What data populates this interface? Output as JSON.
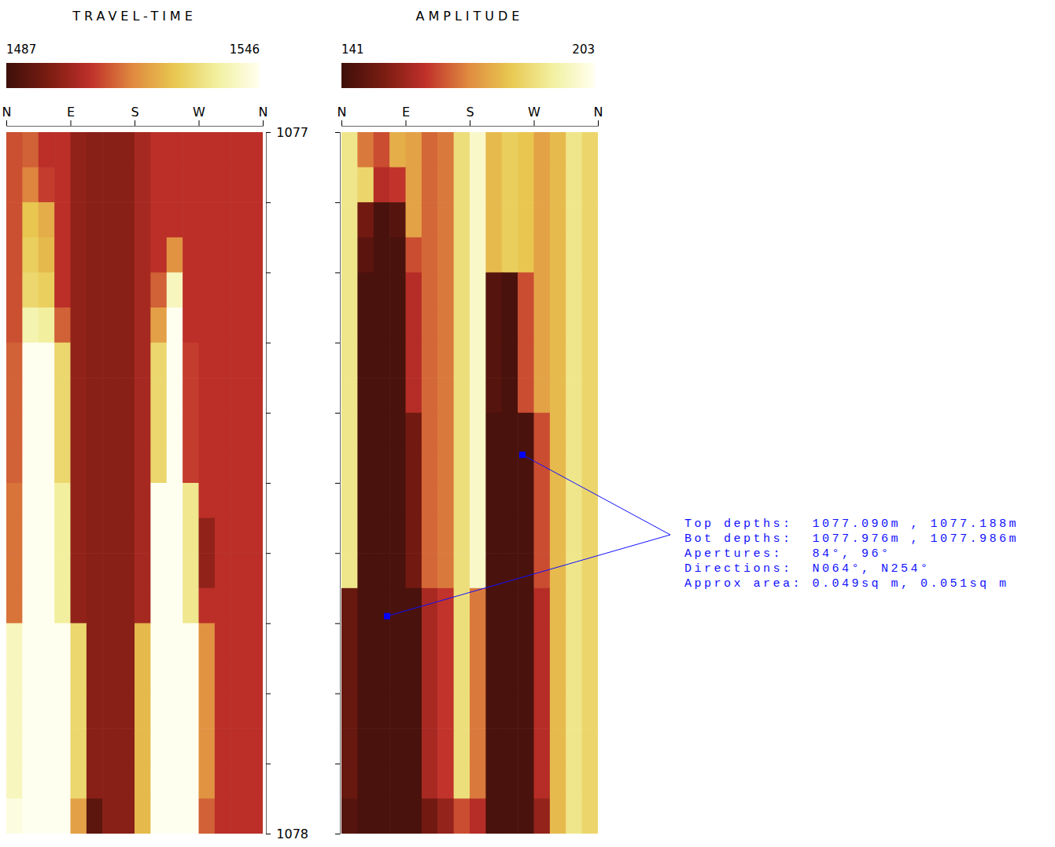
{
  "chart_data": [
    {
      "type": "heatmap",
      "title": "TRAVEL-TIME",
      "xlim": [
        0,
        360
      ],
      "xticks": [
        {
          "value": 0,
          "label": "N"
        },
        {
          "value": 90,
          "label": "E"
        },
        {
          "value": 180,
          "label": "S"
        },
        {
          "value": 270,
          "label": "W"
        },
        {
          "value": 360,
          "label": "N"
        }
      ],
      "ylim": [
        1077,
        1078
      ],
      "colorbar": {
        "range": [
          1487,
          1546
        ],
        "ticks": [
          1487,
          1546
        ]
      },
      "cells": [
        [
          1510,
          1512,
          1506,
          1506,
          1500,
          1499,
          1499,
          1499,
          1503,
          1506,
          1506,
          1506,
          1506,
          1506,
          1506,
          1506
        ],
        [
          1510,
          1516,
          1508,
          1506,
          1500,
          1499,
          1499,
          1499,
          1503,
          1506,
          1506,
          1506,
          1506,
          1506,
          1506,
          1506
        ],
        [
          1510,
          1526,
          1522,
          1506,
          1500,
          1499,
          1499,
          1499,
          1503,
          1506,
          1506,
          1506,
          1506,
          1506,
          1506,
          1506
        ],
        [
          1510,
          1528,
          1524,
          1506,
          1500,
          1499,
          1499,
          1499,
          1503,
          1506,
          1518,
          1506,
          1506,
          1506,
          1506,
          1506
        ],
        [
          1510,
          1530,
          1528,
          1506,
          1500,
          1499,
          1499,
          1499,
          1503,
          1512,
          1540,
          1506,
          1506,
          1506,
          1506,
          1506
        ],
        [
          1510,
          1538,
          1536,
          1512,
          1500,
          1499,
          1499,
          1499,
          1503,
          1520,
          1546,
          1506,
          1506,
          1506,
          1506,
          1506
        ],
        [
          1512,
          1546,
          1546,
          1530,
          1500,
          1499,
          1499,
          1499,
          1503,
          1530,
          1546,
          1508,
          1506,
          1506,
          1506,
          1506
        ],
        [
          1512,
          1546,
          1546,
          1530,
          1500,
          1499,
          1499,
          1499,
          1503,
          1530,
          1546,
          1508,
          1506,
          1506,
          1506,
          1506
        ],
        [
          1512,
          1546,
          1546,
          1530,
          1500,
          1499,
          1499,
          1499,
          1503,
          1530,
          1546,
          1508,
          1506,
          1506,
          1506,
          1506
        ],
        [
          1512,
          1546,
          1546,
          1530,
          1500,
          1499,
          1499,
          1499,
          1503,
          1530,
          1546,
          1508,
          1506,
          1506,
          1506,
          1506
        ],
        [
          1514,
          1546,
          1546,
          1536,
          1500,
          1499,
          1499,
          1499,
          1503,
          1546,
          1546,
          1534,
          1506,
          1506,
          1506,
          1506
        ],
        [
          1514,
          1546,
          1546,
          1536,
          1500,
          1499,
          1499,
          1499,
          1503,
          1546,
          1546,
          1534,
          1500,
          1506,
          1506,
          1506
        ],
        [
          1514,
          1546,
          1546,
          1536,
          1500,
          1499,
          1499,
          1499,
          1503,
          1546,
          1546,
          1534,
          1500,
          1506,
          1506,
          1506
        ],
        [
          1514,
          1546,
          1546,
          1536,
          1500,
          1499,
          1499,
          1499,
          1503,
          1546,
          1546,
          1534,
          1506,
          1506,
          1506,
          1506
        ],
        [
          1540,
          1546,
          1546,
          1546,
          1530,
          1499,
          1499,
          1499,
          1524,
          1546,
          1546,
          1546,
          1518,
          1506,
          1506,
          1506
        ],
        [
          1540,
          1546,
          1546,
          1546,
          1530,
          1499,
          1499,
          1499,
          1524,
          1546,
          1546,
          1546,
          1518,
          1506,
          1506,
          1506
        ],
        [
          1540,
          1546,
          1546,
          1546,
          1530,
          1499,
          1499,
          1499,
          1524,
          1546,
          1546,
          1546,
          1518,
          1506,
          1506,
          1506
        ],
        [
          1540,
          1546,
          1546,
          1546,
          1530,
          1499,
          1499,
          1499,
          1524,
          1546,
          1546,
          1546,
          1518,
          1506,
          1506,
          1506
        ],
        [
          1540,
          1546,
          1546,
          1546,
          1530,
          1499,
          1499,
          1499,
          1524,
          1546,
          1546,
          1546,
          1518,
          1506,
          1506,
          1506
        ],
        [
          1544,
          1546,
          1546,
          1546,
          1520,
          1492,
          1499,
          1499,
          1524,
          1546,
          1546,
          1546,
          1512,
          1506,
          1506,
          1506
        ]
      ]
    },
    {
      "type": "heatmap",
      "title": "AMPLITUDE",
      "xlim": [
        0,
        360
      ],
      "xticks": [
        {
          "value": 0,
          "label": "N"
        },
        {
          "value": 90,
          "label": "E"
        },
        {
          "value": 180,
          "label": "S"
        },
        {
          "value": 270,
          "label": "W"
        },
        {
          "value": 360,
          "label": "N"
        }
      ],
      "ylim": [
        1077,
        1078
      ],
      "yticks": [
        1077,
        {
          "value": 1077.1,
          "label": null
        },
        {
          "value": 1077.2,
          "label": null
        },
        {
          "value": 1077.3,
          "label": null
        },
        {
          "value": 1077.4,
          "label": null
        },
        {
          "value": 1077.5,
          "label": null
        },
        {
          "value": 1077.6,
          "label": null
        },
        {
          "value": 1077.7,
          "label": null
        },
        {
          "value": 1077.8,
          "label": null
        },
        {
          "value": 1077.9,
          "label": null
        },
        1078
      ],
      "colorbar": {
        "range": [
          141,
          203
        ],
        "ticks": [
          141,
          203
        ]
      },
      "cells": [
        [
          190,
          170,
          165,
          178,
          176,
          168,
          170,
          188,
          198,
          180,
          184,
          182,
          176,
          180,
          190,
          186
        ],
        [
          190,
          186,
          160,
          162,
          176,
          168,
          170,
          188,
          198,
          180,
          184,
          182,
          176,
          180,
          190,
          186
        ],
        [
          190,
          150,
          143,
          145,
          176,
          168,
          170,
          188,
          198,
          180,
          184,
          182,
          176,
          180,
          190,
          186
        ],
        [
          190,
          146,
          143,
          143,
          165,
          168,
          170,
          188,
          198,
          180,
          184,
          182,
          176,
          180,
          190,
          186
        ],
        [
          190,
          143,
          143,
          143,
          160,
          168,
          170,
          188,
          198,
          145,
          143,
          165,
          176,
          180,
          190,
          186
        ],
        [
          190,
          143,
          143,
          143,
          160,
          168,
          170,
          188,
          198,
          145,
          143,
          165,
          176,
          180,
          190,
          186
        ],
        [
          190,
          143,
          143,
          143,
          160,
          168,
          170,
          188,
          198,
          145,
          143,
          165,
          176,
          180,
          190,
          186
        ],
        [
          190,
          143,
          143,
          143,
          160,
          168,
          170,
          188,
          198,
          145,
          143,
          165,
          176,
          180,
          190,
          186
        ],
        [
          190,
          143,
          143,
          143,
          150,
          168,
          170,
          188,
          198,
          143,
          143,
          143,
          165,
          180,
          190,
          186
        ],
        [
          190,
          143,
          143,
          143,
          150,
          168,
          170,
          188,
          198,
          143,
          143,
          143,
          165,
          180,
          190,
          186
        ],
        [
          190,
          143,
          143,
          143,
          150,
          168,
          170,
          188,
          198,
          143,
          143,
          143,
          165,
          180,
          190,
          186
        ],
        [
          190,
          143,
          143,
          143,
          150,
          168,
          170,
          188,
          198,
          143,
          143,
          143,
          165,
          180,
          190,
          186
        ],
        [
          190,
          143,
          143,
          143,
          150,
          168,
          170,
          188,
          198,
          143,
          143,
          143,
          165,
          180,
          190,
          186
        ],
        [
          148,
          143,
          143,
          143,
          143,
          158,
          162,
          188,
          170,
          143,
          143,
          143,
          160,
          180,
          190,
          186
        ],
        [
          148,
          143,
          143,
          143,
          143,
          158,
          162,
          188,
          170,
          143,
          143,
          143,
          160,
          180,
          190,
          186
        ],
        [
          148,
          143,
          143,
          143,
          143,
          158,
          162,
          188,
          170,
          143,
          143,
          143,
          160,
          180,
          190,
          186
        ],
        [
          148,
          143,
          143,
          143,
          143,
          158,
          162,
          188,
          170,
          143,
          143,
          143,
          160,
          180,
          190,
          186
        ],
        [
          148,
          143,
          143,
          143,
          143,
          158,
          162,
          188,
          170,
          143,
          143,
          143,
          160,
          180,
          190,
          186
        ],
        [
          148,
          143,
          143,
          143,
          143,
          158,
          162,
          188,
          170,
          143,
          143,
          143,
          160,
          180,
          190,
          186
        ],
        [
          145,
          143,
          143,
          143,
          143,
          150,
          155,
          165,
          160,
          143,
          143,
          143,
          155,
          180,
          190,
          186
        ]
      ],
      "picks": {
        "azimuth": [
          254,
          64
        ],
        "depth": [
          1077.46,
          1077.69
        ]
      },
      "annotation": [
        "Top depths:  1077.090m , 1077.188m",
        "Bot depths:  1077.976m , 1077.986m",
        "Apertures:   84°, 96°",
        "Directions:  N064°, N254°",
        "Approx area: 0.049sq m, 0.051sq m"
      ]
    }
  ]
}
